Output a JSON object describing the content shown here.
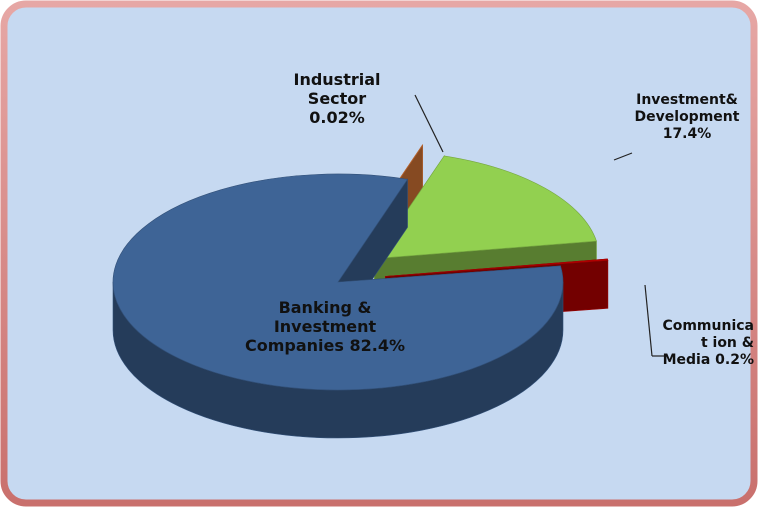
{
  "chart_data": {
    "type": "pie",
    "categories": [
      "Industrial Sector",
      "Investment& Development",
      "Communicat ion & Media",
      "Banking & Investment Companies"
    ],
    "values": [
      0.02,
      17.4,
      0.2,
      82.4
    ],
    "value_labels": [
      "0.02%",
      "17.4%",
      "0.2%",
      "82.4%"
    ],
    "colors": [
      "#e07b39",
      "#92d050",
      "#c00000",
      "#3e6496"
    ]
  }
}
